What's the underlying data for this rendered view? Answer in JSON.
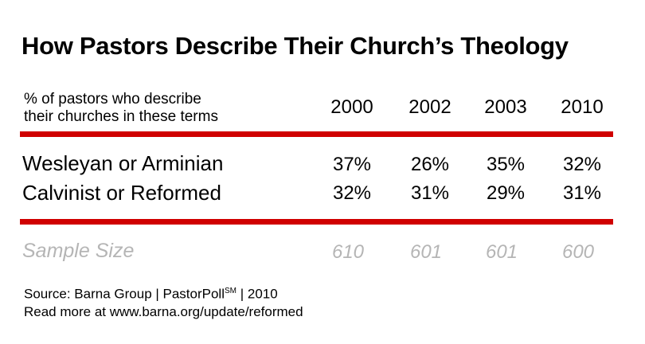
{
  "chart_data": {
    "type": "table",
    "title": "How Pastors Describe Their Church’s Theology",
    "header_label": "% of pastors who describe their churches in these terms",
    "header_label_lines": [
      "% of pastors who describe",
      "their churches in these terms"
    ],
    "columns": [
      "2000",
      "2002",
      "2003",
      "2010"
    ],
    "rows": [
      {
        "label": "Wesleyan or Arminian",
        "values": [
          "37%",
          "26%",
          "35%",
          "32%"
        ]
      },
      {
        "label": "Calvinist or Reformed",
        "values": [
          "32%",
          "31%",
          "29%",
          "31%"
        ]
      }
    ],
    "sample_size": {
      "label": "Sample Size",
      "values": [
        "610",
        "601",
        "601",
        "600"
      ]
    },
    "series": [
      {
        "name": "Wesleyan or Arminian",
        "values": [
          37,
          26,
          35,
          32
        ]
      },
      {
        "name": "Calvinist or Reformed",
        "values": [
          32,
          31,
          29,
          31
        ]
      }
    ]
  },
  "source": {
    "line1_prefix": "Source: Barna Group | PastorPoll",
    "line1_superscript": "SM",
    "line1_suffix": " | 2010",
    "line2": "Read more at www.barna.org/update/reformed"
  },
  "colors": {
    "rule": "#d00000",
    "sample_text": "#b5b5b5"
  }
}
